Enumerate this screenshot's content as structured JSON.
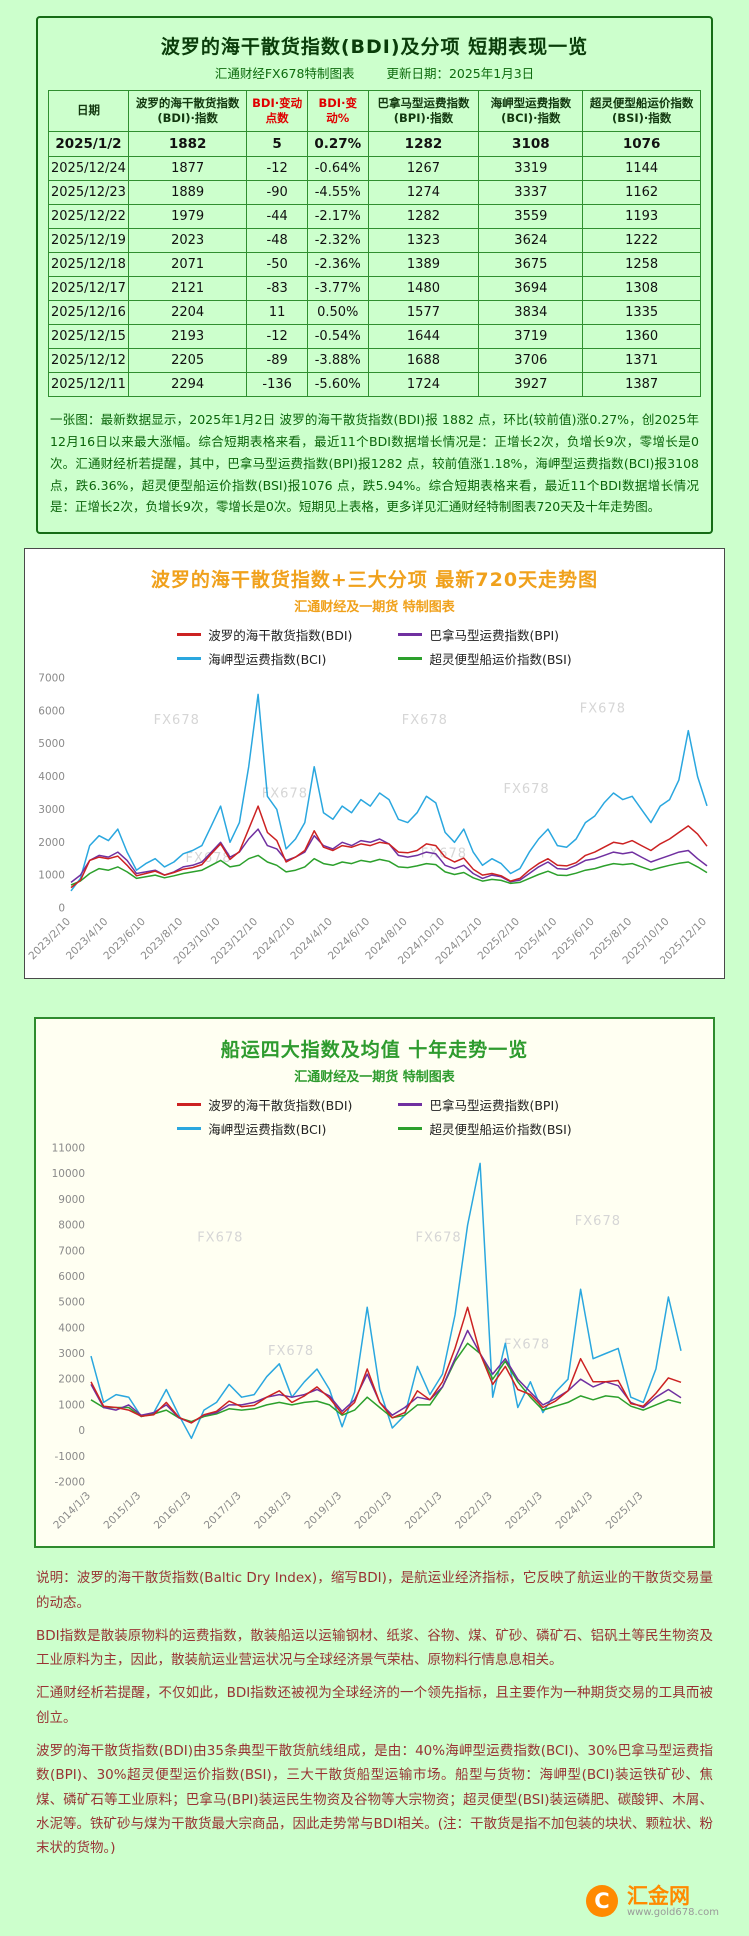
{
  "report": {
    "title": "波罗的海干散货指数(BDI)及分项  短期表现一览",
    "brand_note": "汇通财经FX678特制图表",
    "update_date": "更新日期：2025年1月3日",
    "table": {
      "columns": [
        "日期",
        "波罗的海干散货指数(BDI)·指数",
        "BDI·变动点数",
        "BDI·变动%",
        "巴拿马型运费指数(BPI)·指数",
        "海岬型运费指数(BCI)·指数",
        "超灵便型船运价指数(BSI)·指数"
      ],
      "rows": [
        [
          "2025/1/2",
          "1882",
          "5",
          "0.27%",
          "1282",
          "3108",
          "1076"
        ],
        [
          "2025/12/24",
          "1877",
          "-12",
          "-0.64%",
          "1267",
          "3319",
          "1144"
        ],
        [
          "2025/12/23",
          "1889",
          "-90",
          "-4.55%",
          "1274",
          "3337",
          "1162"
        ],
        [
          "2025/12/22",
          "1979",
          "-44",
          "-2.17%",
          "1282",
          "3559",
          "1193"
        ],
        [
          "2025/12/19",
          "2023",
          "-48",
          "-2.32%",
          "1323",
          "3624",
          "1222"
        ],
        [
          "2025/12/18",
          "2071",
          "-50",
          "-2.36%",
          "1389",
          "3675",
          "1258"
        ],
        [
          "2025/12/17",
          "2121",
          "-83",
          "-3.77%",
          "1480",
          "3694",
          "1308"
        ],
        [
          "2025/12/16",
          "2204",
          "11",
          "0.50%",
          "1577",
          "3834",
          "1335"
        ],
        [
          "2025/12/15",
          "2193",
          "-12",
          "-0.54%",
          "1644",
          "3719",
          "1360"
        ],
        [
          "2025/12/12",
          "2205",
          "-89",
          "-3.88%",
          "1688",
          "3706",
          "1371"
        ],
        [
          "2025/12/11",
          "2294",
          "-136",
          "-5.60%",
          "1724",
          "3927",
          "1387"
        ]
      ]
    },
    "summary": "一张图：最新数据显示，2025年1月2日 波罗的海干散货指数(BDI)报 1882 点，环比(较前值)涨0.27%，创2025年12月16日以来最大涨幅。综合短期表格来看，最近11个BDI数据增长情况是：正增长2次，负增长9次，零增长是0次。汇通财经析若提醒，其中，巴拿马型运费指数(BPI)报1282 点，较前值涨1.18%，海岬型运费指数(BCI)报3108 点，跌6.36%，超灵便型船运价指数(BSI)报1076 点，跌5.94%。综合短期表格来看，最近11个BDI数据增长情况是：正增长2次，负增长9次，零增长是0次。短期见上表格，更多详见汇通财经特制图表720天及十年走势图。"
  },
  "chart_data": [
    {
      "type": "line",
      "title": "波罗的海干散货指数+三大分项  最新720天走势图",
      "subtitle": "汇通财经及一期货 特制图表",
      "title_color": "#f0a11c",
      "watermark": "FX678",
      "legend_position": "top",
      "grid": false,
      "ylim": [
        0,
        7000
      ],
      "ytick_step": 1000,
      "x_tick_every": 4,
      "x_tick_labels": [
        "2023/2/10",
        "2023/4/10",
        "2023/6/10",
        "2023/8/10",
        "2023/10/10",
        "2023/12/10",
        "2024/2/10",
        "2024/4/10",
        "2024/6/10",
        "2024/8/10",
        "2024/10/10",
        "2024/12/10",
        "2025/2/10",
        "2025/4/10",
        "2025/6/10",
        "2025/8/10",
        "2025/10/10",
        "2025/12/10"
      ],
      "series": [
        {
          "name": "波罗的海干散货指数(BDI)",
          "color": "#cc2222",
          "values": [
            620,
            840,
            1450,
            1550,
            1500,
            1580,
            1300,
            980,
            1050,
            1120,
            1000,
            1080,
            1180,
            1230,
            1320,
            1650,
            1950,
            1480,
            1720,
            2400,
            3100,
            2300,
            2050,
            1400,
            1550,
            1750,
            2350,
            1850,
            1750,
            1900,
            1850,
            1950,
            1900,
            2000,
            1950,
            1700,
            1680,
            1750,
            1950,
            1900,
            1550,
            1400,
            1520,
            1180,
            1000,
            1050,
            980,
            820,
            900,
            1150,
            1350,
            1500,
            1300,
            1280,
            1380,
            1600,
            1700,
            1850,
            2000,
            1950,
            2050,
            1900,
            1750,
            1950,
            2100,
            2300,
            2500,
            2250,
            1882
          ]
        },
        {
          "name": "巴拿马型运费指数(BPI)",
          "color": "#7030a0",
          "values": [
            780,
            1000,
            1450,
            1600,
            1550,
            1700,
            1450,
            1050,
            1100,
            1150,
            1000,
            1100,
            1250,
            1300,
            1400,
            1700,
            2000,
            1550,
            1700,
            2100,
            2400,
            1900,
            1800,
            1450,
            1550,
            1700,
            2200,
            1900,
            1800,
            2000,
            1900,
            2050,
            2000,
            2100,
            1950,
            1600,
            1550,
            1600,
            1700,
            1650,
            1300,
            1200,
            1300,
            1050,
            900,
            1000,
            950,
            800,
            850,
            1050,
            1250,
            1400,
            1200,
            1180,
            1300,
            1450,
            1500,
            1600,
            1700,
            1650,
            1700,
            1550,
            1400,
            1500,
            1600,
            1700,
            1750,
            1500,
            1282
          ]
        },
        {
          "name": "海岬型运费指数(BCI)",
          "color": "#2aa7df",
          "values": [
            520,
            900,
            1900,
            2200,
            2050,
            2400,
            1700,
            1150,
            1350,
            1500,
            1250,
            1400,
            1650,
            1750,
            1900,
            2500,
            3100,
            2000,
            2600,
            4300,
            6500,
            3400,
            3000,
            1800,
            2100,
            2600,
            4300,
            2900,
            2700,
            3100,
            2900,
            3300,
            3100,
            3500,
            3300,
            2700,
            2600,
            2900,
            3400,
            3200,
            2300,
            2000,
            2400,
            1700,
            1300,
            1500,
            1350,
            1050,
            1200,
            1700,
            2100,
            2400,
            1900,
            1850,
            2100,
            2600,
            2800,
            3200,
            3500,
            3300,
            3400,
            3000,
            2600,
            3100,
            3300,
            3900,
            5400,
            4000,
            3108
          ]
        },
        {
          "name": "超灵便型船运价指数(BSI)",
          "color": "#2ca02c",
          "values": [
            700,
            820,
            1050,
            1200,
            1150,
            1250,
            1100,
            900,
            950,
            1000,
            920,
            980,
            1050,
            1100,
            1150,
            1300,
            1450,
            1250,
            1300,
            1500,
            1600,
            1400,
            1300,
            1100,
            1150,
            1250,
            1500,
            1350,
            1300,
            1400,
            1350,
            1450,
            1400,
            1480,
            1420,
            1250,
            1230,
            1280,
            1350,
            1320,
            1100,
            1020,
            1080,
            920,
            820,
            870,
            840,
            750,
            780,
            900,
            1020,
            1120,
            1000,
            990,
            1060,
            1150,
            1200,
            1280,
            1350,
            1320,
            1350,
            1250,
            1150,
            1230,
            1300,
            1360,
            1400,
            1250,
            1076
          ]
        }
      ]
    },
    {
      "type": "line",
      "title": "船运四大指数及均值 十年走势一览",
      "subtitle": "汇通财经及一期货 特制图表",
      "title_color": "#2e9b2e",
      "watermark": "FX678",
      "legend_position": "top",
      "grid": false,
      "ylim": [
        -2000,
        11000
      ],
      "ytick_step": 1000,
      "x_tick_every": 4,
      "x_tick_labels": [
        "2014/1/3",
        "2015/1/3",
        "2016/1/3",
        "2017/1/3",
        "2018/1/3",
        "2019/1/3",
        "2020/1/3",
        "2021/1/3",
        "2022/1/3",
        "2023/1/3",
        "2024/1/3",
        "2025/1/3"
      ],
      "series": [
        {
          "name": "波罗的海干散货指数(BDI)",
          "color": "#cc2222",
          "values": [
            1900,
            950,
            900,
            800,
            560,
            620,
            1100,
            520,
            300,
            620,
            750,
            1150,
            930,
            980,
            1300,
            1550,
            1100,
            1350,
            1700,
            1270,
            650,
            1100,
            2400,
            1100,
            500,
            700,
            1550,
            1200,
            1900,
            3200,
            4800,
            3000,
            1800,
            2500,
            1600,
            1400,
            900,
            1150,
            1550,
            2800,
            1900,
            1900,
            1950,
            1050,
            950,
            1450,
            2050,
            1882
          ]
        },
        {
          "name": "巴拿马型运费指数(BPI)",
          "color": "#7030a0",
          "values": [
            1800,
            900,
            800,
            1000,
            600,
            700,
            1000,
            500,
            300,
            600,
            700,
            1000,
            1000,
            1100,
            1300,
            1400,
            1300,
            1400,
            1600,
            1350,
            750,
            1200,
            2200,
            1100,
            600,
            900,
            1300,
            1200,
            1700,
            2800,
            3900,
            3000,
            2200,
            2800,
            2000,
            1500,
            1000,
            1250,
            1550,
            2000,
            1700,
            1900,
            1750,
            1100,
            900,
            1300,
            1600,
            1282
          ]
        },
        {
          "name": "海岬型运费指数(BCI)",
          "color": "#2aa7df",
          "values": [
            2900,
            1100,
            1400,
            1300,
            550,
            700,
            1600,
            600,
            -300,
            800,
            1100,
            1800,
            1300,
            1400,
            2100,
            2600,
            1300,
            1900,
            2400,
            1600,
            150,
            1500,
            4800,
            1600,
            100,
            600,
            2500,
            1400,
            2200,
            4500,
            8000,
            10400,
            1300,
            3400,
            900,
            1900,
            700,
            1500,
            2000,
            5500,
            2800,
            3000,
            3200,
            1300,
            1100,
            2400,
            5200,
            3108
          ]
        },
        {
          "name": "超灵便型船运价指数(BSI)",
          "color": "#2ca02c",
          "values": [
            1200,
            900,
            900,
            900,
            550,
            650,
            800,
            500,
            350,
            550,
            650,
            850,
            800,
            850,
            1000,
            1100,
            1000,
            1100,
            1150,
            1000,
            600,
            800,
            1300,
            900,
            500,
            600,
            1000,
            1000,
            1700,
            2700,
            3400,
            3000,
            2000,
            2700,
            1900,
            1300,
            800,
            950,
            1100,
            1350,
            1200,
            1350,
            1300,
            950,
            800,
            1000,
            1200,
            1076
          ]
        }
      ]
    }
  ],
  "notes": {
    "paragraphs": [
      "说明：波罗的海干散货指数(Baltic Dry Index)，缩写BDI)，是航运业经济指标，它反映了航运业的干散货交易量的动态。",
      "BDI指数是散装原物料的运费指数，散装船运以运输钢材、纸浆、谷物、煤、矿砂、磷矿石、铝矾土等民生物资及工业原料为主，因此，散装航运业营运状况与全球经济景气荣枯、原物料行情息息相关。",
      "汇通财经析若提醒，不仅如此，BDI指数还被视为全球经济的一个领先指标，且主要作为一种期货交易的工具而被创立。",
      "波罗的海干散货指数(BDI)由35条典型干散货航线组成，是由：40%海岬型运费指数(BCI)、30%巴拿马型运费指数(BPI)、30%超灵便型运价指数(BSI)，三大干散货船型运输市场。船型与货物：海岬型(BCI)装运铁矿砂、焦煤、磷矿石等工业原料；巴拿马(BPI)装运民生物资及谷物等大宗物资；超灵便型(BSI)装运磷肥、碳酸钾、木屑、水泥等。铁矿砂与煤为干散货最大宗商品，因此走势常与BDI相关。(注：干散货是指不加包装的块状、颗粒状、粉末状的货物。)"
    ]
  },
  "logo": {
    "icon_letter": "C",
    "name": "汇金网",
    "url": "www.gold678.com",
    "accent_color": "#ff8a00"
  }
}
